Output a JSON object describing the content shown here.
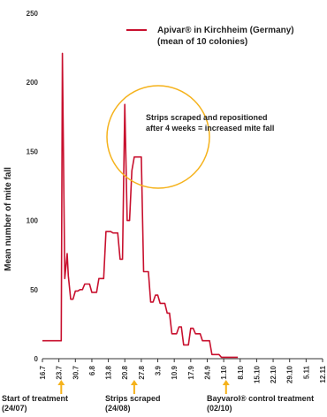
{
  "chart_data": {
    "type": "line",
    "ylabel": "Mean number of mite fall",
    "ylim": [
      0,
      250
    ],
    "yticks": [
      0,
      50,
      100,
      150,
      200,
      250
    ],
    "grid": false,
    "legend_position": "top-right",
    "x_tick_labels": [
      "16.7",
      "23.7",
      "30.7",
      "6.8",
      "13.8",
      "20.8",
      "27.8",
      "3.9",
      "10.9",
      "17.9",
      "24.9",
      "1.10",
      "8.10",
      "15.10",
      "22.10",
      "29.10",
      "5.11",
      "12.11"
    ],
    "x_tick_index": [
      0,
      7,
      14,
      21,
      28,
      35,
      42,
      49,
      56,
      63,
      70,
      77,
      84,
      91,
      98,
      105,
      112,
      119
    ],
    "series": [
      {
        "name": "Apivar® in Kirchheim (Germany)",
        "name_line2": "(mean of 10 colonies)",
        "color": "#c8102e",
        "points": [
          [
            0,
            13
          ],
          [
            6,
            13
          ],
          [
            8,
            13
          ],
          [
            8.5,
            221
          ],
          [
            9.5,
            58
          ],
          [
            10.5,
            76
          ],
          [
            11,
            60
          ],
          [
            12,
            43
          ],
          [
            13,
            43
          ],
          [
            14,
            49
          ],
          [
            15,
            49
          ],
          [
            16,
            50
          ],
          [
            17,
            50
          ],
          [
            18,
            54
          ],
          [
            20,
            54
          ],
          [
            21,
            48
          ],
          [
            23,
            48
          ],
          [
            24,
            58
          ],
          [
            26,
            58
          ],
          [
            27,
            92
          ],
          [
            29,
            92
          ],
          [
            30,
            91
          ],
          [
            32,
            91
          ],
          [
            33,
            72
          ],
          [
            34,
            72
          ],
          [
            35,
            184
          ],
          [
            36,
            100
          ],
          [
            37,
            100
          ],
          [
            38,
            136
          ],
          [
            39,
            146
          ],
          [
            41,
            146
          ],
          [
            42,
            146
          ],
          [
            43,
            63
          ],
          [
            45,
            63
          ],
          [
            46,
            41
          ],
          [
            47,
            41
          ],
          [
            48,
            46
          ],
          [
            49,
            46
          ],
          [
            50,
            40
          ],
          [
            52,
            40
          ],
          [
            53,
            33
          ],
          [
            54,
            33
          ],
          [
            55,
            18
          ],
          [
            57,
            18
          ],
          [
            58,
            23
          ],
          [
            59,
            23
          ],
          [
            60,
            10
          ],
          [
            62,
            10
          ],
          [
            63,
            22
          ],
          [
            64,
            22
          ],
          [
            65,
            18
          ],
          [
            67,
            18
          ],
          [
            68,
            13
          ],
          [
            71,
            13
          ],
          [
            72,
            3
          ],
          [
            75,
            3
          ],
          [
            76,
            1
          ],
          [
            82,
            1
          ],
          [
            83,
            1
          ]
        ]
      }
    ],
    "annotations": [
      {
        "text_line1": "Strips scraped and repositioned",
        "text_line2": "after 4 weeks = increased mite fall"
      }
    ],
    "events": [
      {
        "line1": "Start of treatment",
        "line2": "(24/07)",
        "x": 8
      },
      {
        "line1": "Strips scraped",
        "line2": "(24/08)",
        "x": 39
      },
      {
        "line1": "Bayvarol® control treatment",
        "line2": "(02/10)",
        "x": 78
      }
    ],
    "colors": {
      "series": "#c8102e",
      "circle": "#f5b21b",
      "arrow": "#f5b21b",
      "axis": "#333333"
    }
  }
}
